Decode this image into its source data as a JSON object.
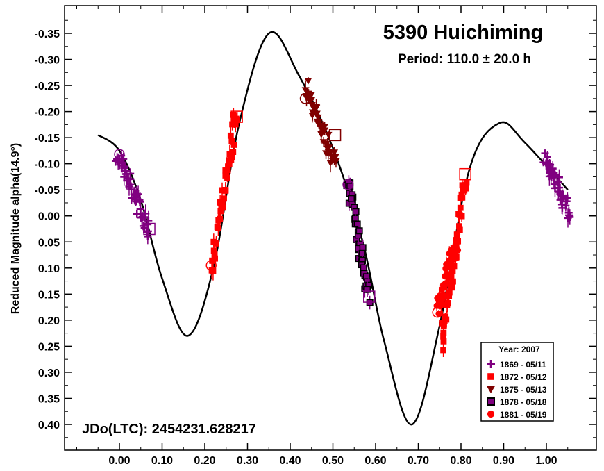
{
  "chart_data": {
    "type": "scatter",
    "title": "5390 Huichiming",
    "subtitle": "Period: 110.0 ± 20.0 h",
    "xlabel": "",
    "ylabel": "Reduced Magnitude alpha(14.9°)",
    "annotation": "JDo(LTC): 2454231.628217",
    "xlim": [
      -0.12,
      1.12
    ],
    "ylim": [
      -0.4,
      0.45
    ],
    "y_inverted": true,
    "grid": false,
    "legend_position": "bottom-right",
    "x_ticks": [
      {
        "value": 0.0,
        "label": "0.00"
      },
      {
        "value": 0.1,
        "label": "0.10"
      },
      {
        "value": 0.2,
        "label": "0.20"
      },
      {
        "value": 0.3,
        "label": "0.30"
      },
      {
        "value": 0.4,
        "label": "0.40"
      },
      {
        "value": 0.5,
        "label": "0.50"
      },
      {
        "value": 0.6,
        "label": "0.60"
      },
      {
        "value": 0.7,
        "label": "0.70"
      },
      {
        "value": 0.8,
        "label": "0.80"
      },
      {
        "value": 0.9,
        "label": "0.90"
      },
      {
        "value": 1.0,
        "label": "1.00"
      }
    ],
    "y_ticks": [
      {
        "value": -0.35,
        "label": "-0.35"
      },
      {
        "value": -0.3,
        "label": "-0.30"
      },
      {
        "value": -0.25,
        "label": "-0.25"
      },
      {
        "value": -0.2,
        "label": "-0.20"
      },
      {
        "value": -0.15,
        "label": "-0.15"
      },
      {
        "value": -0.1,
        "label": "-0.10"
      },
      {
        "value": -0.05,
        "label": "-0.05"
      },
      {
        "value": 0.0,
        "label": "0.00"
      },
      {
        "value": 0.05,
        "label": "0.05"
      },
      {
        "value": 0.1,
        "label": "0.10"
      },
      {
        "value": 0.15,
        "label": "0.15"
      },
      {
        "value": 0.2,
        "label": "0.20"
      },
      {
        "value": 0.25,
        "label": "0.25"
      },
      {
        "value": 0.3,
        "label": "0.30"
      },
      {
        "value": 0.35,
        "label": "0.35"
      },
      {
        "value": 0.4,
        "label": "0.40"
      }
    ],
    "legend_title": "Year: 2007",
    "fit_curve": {
      "x": [
        -0.05,
        0.0,
        0.05,
        0.1,
        0.16,
        0.22,
        0.28,
        0.35,
        0.42,
        0.5,
        0.57,
        0.62,
        0.685,
        0.75,
        0.82,
        0.89,
        0.95,
        1.05
      ],
      "y": [
        -0.155,
        -0.125,
        -0.03,
        0.12,
        0.23,
        0.1,
        -0.175,
        -0.35,
        -0.27,
        -0.13,
        0.05,
        0.24,
        0.4,
        0.21,
        -0.09,
        -0.178,
        -0.14,
        -0.05
      ]
    },
    "series": [
      {
        "name": "1869 - 05/11",
        "marker": "plus",
        "color": "#800080",
        "segments": [
          {
            "x_start": -0.005,
            "x_end": 0.07,
            "y_start": -0.12,
            "y_end": 0.03
          },
          {
            "x_start": 0.995,
            "x_end": 1.055,
            "y_start": -0.12,
            "y_end": 0.0
          }
        ]
      },
      {
        "name": "1872 - 05/12",
        "marker": "square",
        "color": "#ff0000",
        "segments": [
          {
            "x_start": 0.215,
            "x_end": 0.275,
            "y_start": 0.1,
            "y_end": -0.2
          },
          {
            "x_start": 0.755,
            "x_end": 0.81,
            "y_start": 0.25,
            "y_end": -0.07
          }
        ]
      },
      {
        "name": "1875 - 05/13",
        "marker": "triangle-down",
        "color": "#800000",
        "segments": [
          {
            "x_start": 0.435,
            "x_end": 0.505,
            "y_start": -0.25,
            "y_end": -0.1
          }
        ]
      },
      {
        "name": "1878 - 05/18",
        "marker": "square",
        "color": "#800080",
        "segments": [
          {
            "x_start": 0.535,
            "x_end": 0.585,
            "y_start": -0.07,
            "y_end": 0.16
          }
        ]
      },
      {
        "name": "1881 - 05/19",
        "marker": "circle",
        "color": "#ff0000",
        "segments": [
          {
            "x_start": 0.745,
            "x_end": 0.79,
            "y_start": 0.18,
            "y_end": 0.05
          }
        ]
      }
    ],
    "endpoint_markers": [
      {
        "x": 0.0,
        "y": -0.118,
        "shape": "circle",
        "color": "#800080"
      },
      {
        "x": 0.07,
        "y": 0.025,
        "shape": "square",
        "color": "#800080"
      },
      {
        "x": 0.215,
        "y": 0.095,
        "shape": "circle",
        "color": "#ff0000"
      },
      {
        "x": 0.275,
        "y": -0.19,
        "shape": "square",
        "color": "#ff0000"
      },
      {
        "x": 0.435,
        "y": -0.225,
        "shape": "circle",
        "color": "#800000"
      },
      {
        "x": 0.505,
        "y": -0.155,
        "shape": "square",
        "color": "#800000"
      },
      {
        "x": 0.535,
        "y": -0.06,
        "shape": "circle",
        "color": "#800080"
      },
      {
        "x": 0.585,
        "y": 0.155,
        "shape": "square",
        "color": "#800080"
      },
      {
        "x": 0.745,
        "y": 0.185,
        "shape": "circle",
        "color": "#ff0000"
      },
      {
        "x": 0.81,
        "y": -0.08,
        "shape": "square",
        "color": "#ff0000"
      }
    ]
  }
}
